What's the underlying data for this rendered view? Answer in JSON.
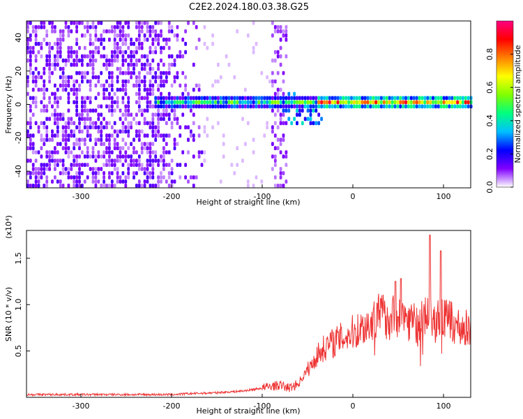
{
  "title": "C2E2.2024.180.03.38.G25",
  "chart_data": [
    {
      "type": "heatmap",
      "xlabel": "Height of straight line (km)",
      "ylabel": "Frequency (Hz)",
      "xlim": [
        -360,
        130
      ],
      "ylim": [
        -50,
        50
      ],
      "x_ticks": [
        -300,
        -200,
        -100,
        0,
        100
      ],
      "x_tick_labels": [
        "-300",
        "-200",
        "-100",
        "0",
        "100"
      ],
      "y_ticks": [
        40,
        20,
        0,
        -20,
        -40
      ],
      "y_tick_labels": [
        "40",
        "20",
        "0",
        "-20",
        "-40"
      ],
      "colorbar": {
        "label": "Normalized spectral amplitude",
        "range": [
          0,
          1
        ],
        "ticks": [
          0.0,
          0.2,
          0.4,
          0.6,
          0.8
        ],
        "tick_labels": [
          "0.0",
          "0.2",
          "0.4",
          "0.6",
          "0.8"
        ],
        "colormap": [
          "#ffffff",
          "#8000ff",
          "#0000ff",
          "#00c0ff",
          "#00ff80",
          "#80ff00",
          "#ffff00",
          "#ff8000",
          "#ff0000",
          "#ff0080"
        ]
      },
      "features": {
        "noise_region_x": [
          -360,
          -165
        ],
        "noise_band_x": [
          -90,
          -75
        ],
        "signal_line_x": [
          -220,
          130
        ],
        "signal_line_freq": 0,
        "strong_signal_x": [
          -40,
          110
        ]
      }
    },
    {
      "type": "line",
      "xlabel": "Height of straight line (km)",
      "ylabel": "SNR (10 * v/v)",
      "scale_note": "(x10⁴)",
      "xlim": [
        -360,
        130
      ],
      "ylim": [
        0,
        1.8
      ],
      "x_ticks": [
        -300,
        -200,
        -100,
        0,
        100
      ],
      "x_tick_labels": [
        "-300",
        "-200",
        "-100",
        "0",
        "100"
      ],
      "y_ticks": [
        0.5,
        1.0,
        1.5
      ],
      "y_tick_labels": [
        "0.5",
        "1.0",
        "1.5"
      ],
      "line_color": "#ee3333",
      "series": [
        {
          "x": [
            -360,
            -300,
            -250,
            -200,
            -180,
            -150,
            -120,
            -100,
            -90,
            -80,
            -70,
            -60,
            -50,
            -45,
            -40,
            -35,
            -30,
            -20,
            -10,
            0,
            10,
            20,
            30,
            40,
            50,
            60,
            70,
            80,
            85,
            90,
            100,
            110,
            120,
            130
          ],
          "y": [
            0.03,
            0.03,
            0.03,
            0.03,
            0.04,
            0.05,
            0.07,
            0.1,
            0.12,
            0.13,
            0.1,
            0.15,
            0.3,
            0.35,
            0.45,
            0.5,
            0.55,
            0.6,
            0.65,
            0.7,
            0.75,
            0.8,
            0.9,
            0.85,
            0.9,
            0.85,
            0.8,
            0.85,
            0.9,
            0.8,
            0.85,
            0.8,
            0.75,
            0.73
          ]
        }
      ],
      "spikes": [
        {
          "x": 47,
          "y": 1.25
        },
        {
          "x": 53,
          "y": 1.28
        },
        {
          "x": 85,
          "y": 1.75
        },
        {
          "x": 97,
          "y": 1.58
        }
      ]
    }
  ]
}
